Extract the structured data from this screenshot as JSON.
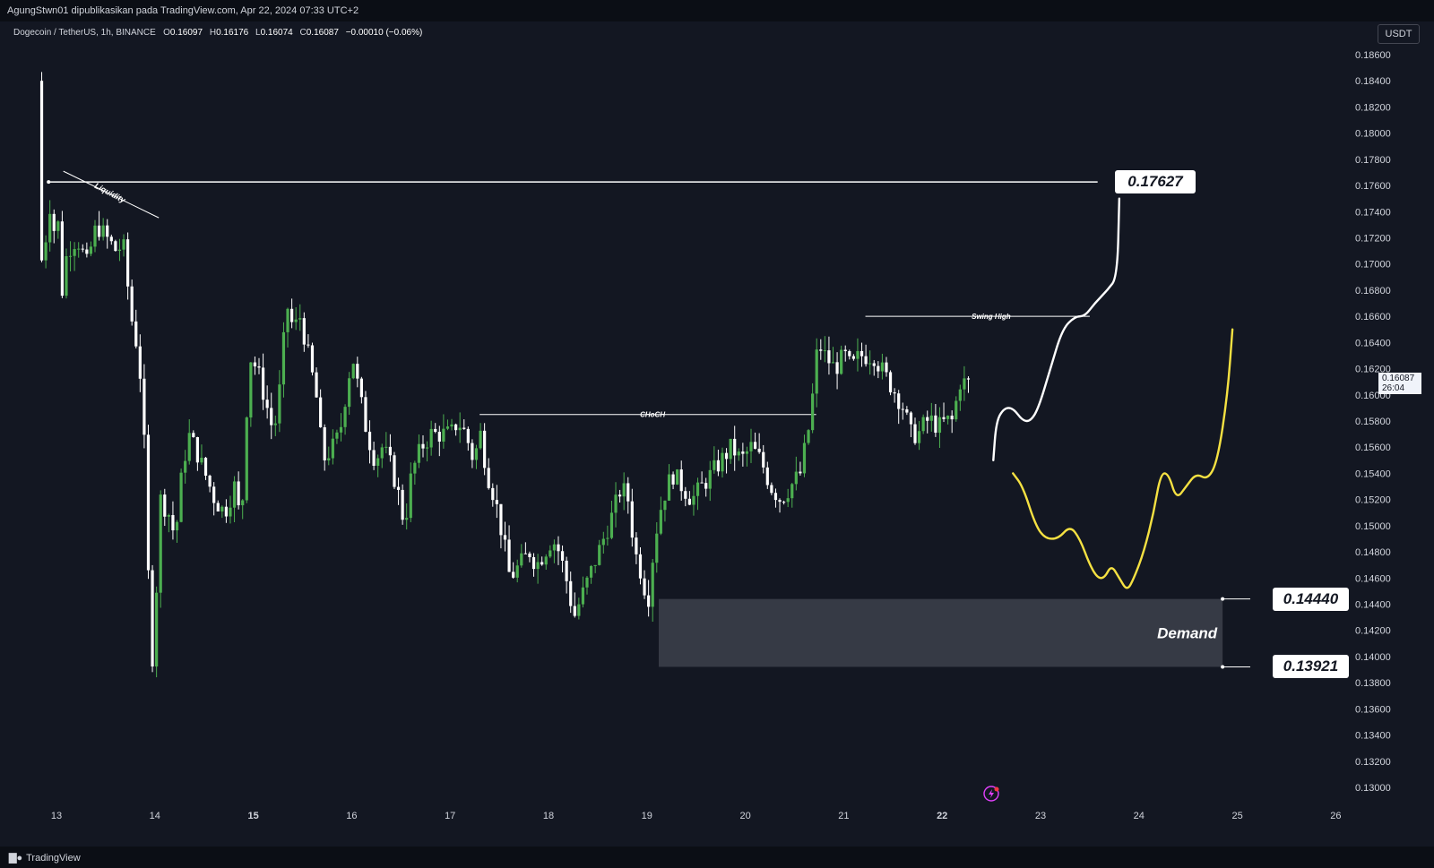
{
  "header": {
    "publisher_line": "AgungStwn01 dipublikasikan pada TradingView.com, Apr 22, 2024 07:33 UTC+2"
  },
  "legend": {
    "symbol": "Dogecoin / TetherUS, 1h, BINANCE",
    "open_label": "O",
    "open": "0.16097",
    "high_label": "H",
    "high": "0.16176",
    "low_label": "L",
    "low": "0.16074",
    "close_label": "C",
    "close": "0.16087",
    "change": "−0.00010 (−0.06%)"
  },
  "price_axis": {
    "unit": "USDT"
  },
  "last_price": {
    "value": "0.16087",
    "countdown": "26:04"
  },
  "footer": {
    "brand": "TradingView",
    "brand_icon": "tradingview-logo-icon"
  },
  "colors": {
    "bull": "#4caf50",
    "bear": "#ffffff",
    "background": "#131722",
    "yellow_path": "#f5e142"
  },
  "annotations": {
    "target_label": "0.17627",
    "demand_top_label": "0.14440",
    "demand_bottom_label": "0.13921",
    "demand_text": "Demand",
    "swing_high_text": "Swing High",
    "choch_text": "CHoCH",
    "liquidity_text": "Liquidity"
  },
  "chart_data": {
    "type": "candlestick",
    "title": "Dogecoin / TetherUS, 1h, BINANCE",
    "ylabel": "USDT",
    "ylim": [
      0.129,
      0.187
    ],
    "y_ticks": [
      "0.18600",
      "0.18400",
      "0.18200",
      "0.18000",
      "0.17800",
      "0.17600",
      "0.17400",
      "0.17200",
      "0.17000",
      "0.16800",
      "0.16600",
      "0.16400",
      "0.16200",
      "0.16000",
      "0.15800",
      "0.15600",
      "0.15400",
      "0.15200",
      "0.15000",
      "0.14800",
      "0.14600",
      "0.14400",
      "0.14200",
      "0.14000",
      "0.13800",
      "0.13600",
      "0.13400",
      "0.13200",
      "0.13000"
    ],
    "x_ticks": [
      "13",
      "14",
      "15",
      "16",
      "17",
      "18",
      "19",
      "20",
      "21",
      "22",
      "23",
      "24",
      "25",
      "26"
    ],
    "x_ticks_bold": [
      "15",
      "22"
    ],
    "x_range_days": [
      12.9,
      26.0
    ],
    "price_path": [
      [
        12.85,
        0.184
      ],
      [
        12.88,
        0.17
      ],
      [
        12.92,
        0.171
      ],
      [
        12.97,
        0.175
      ],
      [
        13.0,
        0.172
      ],
      [
        13.05,
        0.174
      ],
      [
        13.1,
        0.168
      ],
      [
        13.15,
        0.171
      ],
      [
        13.25,
        0.172
      ],
      [
        13.35,
        0.17
      ],
      [
        13.45,
        0.173
      ],
      [
        13.55,
        0.172
      ],
      [
        13.65,
        0.171
      ],
      [
        13.72,
        0.1715
      ],
      [
        13.8,
        0.166
      ],
      [
        13.88,
        0.163
      ],
      [
        13.93,
        0.157
      ],
      [
        13.98,
        0.145
      ],
      [
        14.0,
        0.138
      ],
      [
        14.05,
        0.144
      ],
      [
        14.1,
        0.152
      ],
      [
        14.18,
        0.151
      ],
      [
        14.25,
        0.149
      ],
      [
        14.3,
        0.153
      ],
      [
        14.38,
        0.157
      ],
      [
        14.45,
        0.156
      ],
      [
        14.55,
        0.154
      ],
      [
        14.65,
        0.152
      ],
      [
        14.75,
        0.151
      ],
      [
        14.85,
        0.153
      ],
      [
        14.92,
        0.15
      ],
      [
        15.0,
        0.163
      ],
      [
        15.08,
        0.162
      ],
      [
        15.15,
        0.16
      ],
      [
        15.25,
        0.157
      ],
      [
        15.32,
        0.161
      ],
      [
        15.38,
        0.167
      ],
      [
        15.45,
        0.165
      ],
      [
        15.52,
        0.166
      ],
      [
        15.6,
        0.163
      ],
      [
        15.68,
        0.16
      ],
      [
        15.75,
        0.155
      ],
      [
        15.85,
        0.156
      ],
      [
        15.92,
        0.157
      ],
      [
        16.0,
        0.161
      ],
      [
        16.05,
        0.163
      ],
      [
        16.12,
        0.16
      ],
      [
        16.2,
        0.157
      ],
      [
        16.28,
        0.155
      ],
      [
        16.35,
        0.156
      ],
      [
        16.42,
        0.155
      ],
      [
        16.5,
        0.153
      ],
      [
        16.58,
        0.15
      ],
      [
        16.65,
        0.154
      ],
      [
        16.75,
        0.156
      ],
      [
        16.85,
        0.157
      ],
      [
        16.95,
        0.157
      ],
      [
        17.05,
        0.157
      ],
      [
        17.12,
        0.158
      ],
      [
        17.2,
        0.157
      ],
      [
        17.28,
        0.155
      ],
      [
        17.35,
        0.157
      ],
      [
        17.42,
        0.154
      ],
      [
        17.5,
        0.152
      ],
      [
        17.58,
        0.149
      ],
      [
        17.65,
        0.146
      ],
      [
        17.75,
        0.147
      ],
      [
        17.85,
        0.148
      ],
      [
        17.92,
        0.147
      ],
      [
        18.0,
        0.148
      ],
      [
        18.08,
        0.149
      ],
      [
        18.15,
        0.148
      ],
      [
        18.22,
        0.146
      ],
      [
        18.3,
        0.143
      ],
      [
        18.4,
        0.145
      ],
      [
        18.5,
        0.147
      ],
      [
        18.6,
        0.149
      ],
      [
        18.7,
        0.151
      ],
      [
        18.78,
        0.153
      ],
      [
        18.85,
        0.152
      ],
      [
        18.92,
        0.148
      ],
      [
        19.0,
        0.146
      ],
      [
        19.05,
        0.144
      ],
      [
        19.12,
        0.149
      ],
      [
        19.2,
        0.152
      ],
      [
        19.3,
        0.154
      ],
      [
        19.4,
        0.153
      ],
      [
        19.5,
        0.152
      ],
      [
        19.6,
        0.153
      ],
      [
        19.7,
        0.154
      ],
      [
        19.8,
        0.155
      ],
      [
        19.9,
        0.156
      ],
      [
        20.0,
        0.155
      ],
      [
        20.1,
        0.156
      ],
      [
        20.2,
        0.155
      ],
      [
        20.3,
        0.153
      ],
      [
        20.4,
        0.152
      ],
      [
        20.5,
        0.153
      ],
      [
        20.6,
        0.154
      ],
      [
        20.7,
        0.158
      ],
      [
        20.78,
        0.164
      ],
      [
        20.85,
        0.163
      ],
      [
        20.95,
        0.162
      ],
      [
        21.05,
        0.163
      ],
      [
        21.12,
        0.162
      ],
      [
        21.2,
        0.163
      ],
      [
        21.28,
        0.163
      ],
      [
        21.35,
        0.163
      ],
      [
        21.42,
        0.162
      ],
      [
        21.5,
        0.161
      ],
      [
        21.58,
        0.16
      ],
      [
        21.65,
        0.159
      ],
      [
        21.72,
        0.157
      ],
      [
        21.8,
        0.157
      ],
      [
        21.88,
        0.158
      ],
      [
        21.95,
        0.158
      ],
      [
        22.0,
        0.1575
      ],
      [
        22.08,
        0.158
      ],
      [
        22.15,
        0.158
      ],
      [
        22.22,
        0.161
      ],
      [
        22.3,
        0.16087
      ]
    ],
    "series": [
      {
        "kind": "projection",
        "points": [
          [
            22.52,
            0.155
          ],
          [
            22.55,
            0.158
          ],
          [
            22.63,
            0.159
          ],
          [
            22.72,
            0.159
          ],
          [
            22.82,
            0.158
          ],
          [
            22.9,
            0.158
          ],
          [
            22.98,
            0.159
          ],
          [
            23.1,
            0.162
          ],
          [
            23.22,
            0.165
          ],
          [
            23.35,
            0.166
          ],
          [
            23.45,
            0.166
          ],
          [
            23.55,
            0.167
          ],
          [
            23.68,
            0.168
          ],
          [
            23.78,
            0.169
          ],
          [
            23.8,
            0.175
          ]
        ]
      },
      {
        "kind": "projection",
        "points": [
          [
            22.72,
            0.154
          ],
          [
            22.82,
            0.153
          ],
          [
            22.95,
            0.15
          ],
          [
            23.05,
            0.149
          ],
          [
            23.18,
            0.149
          ],
          [
            23.3,
            0.15
          ],
          [
            23.4,
            0.149
          ],
          [
            23.5,
            0.147
          ],
          [
            23.58,
            0.146
          ],
          [
            23.65,
            0.146
          ],
          [
            23.72,
            0.147
          ],
          [
            23.8,
            0.146
          ],
          [
            23.88,
            0.145
          ],
          [
            23.95,
            0.146
          ],
          [
            24.05,
            0.148
          ],
          [
            24.15,
            0.151
          ],
          [
            24.22,
            0.154
          ],
          [
            24.3,
            0.154
          ],
          [
            24.38,
            0.152
          ],
          [
            24.48,
            0.153
          ],
          [
            24.58,
            0.154
          ],
          [
            24.7,
            0.1535
          ],
          [
            24.8,
            0.155
          ],
          [
            24.9,
            0.16
          ],
          [
            24.95,
            0.165
          ]
        ]
      }
    ],
    "levels": [
      {
        "name": "target",
        "price": 0.17627,
        "from_day": 12.92,
        "to_day": 23.58
      },
      {
        "name": "swing_high",
        "price": 0.166,
        "from_day": 21.22,
        "to_day": 23.5
      },
      {
        "name": "choch",
        "price": 0.1585,
        "from_day": 17.3,
        "to_day": 20.72
      },
      {
        "name": "demand_zone",
        "price_top": 0.1444,
        "price_bottom": 0.13921,
        "from_day": 19.12,
        "to_day": 24.85
      }
    ]
  }
}
